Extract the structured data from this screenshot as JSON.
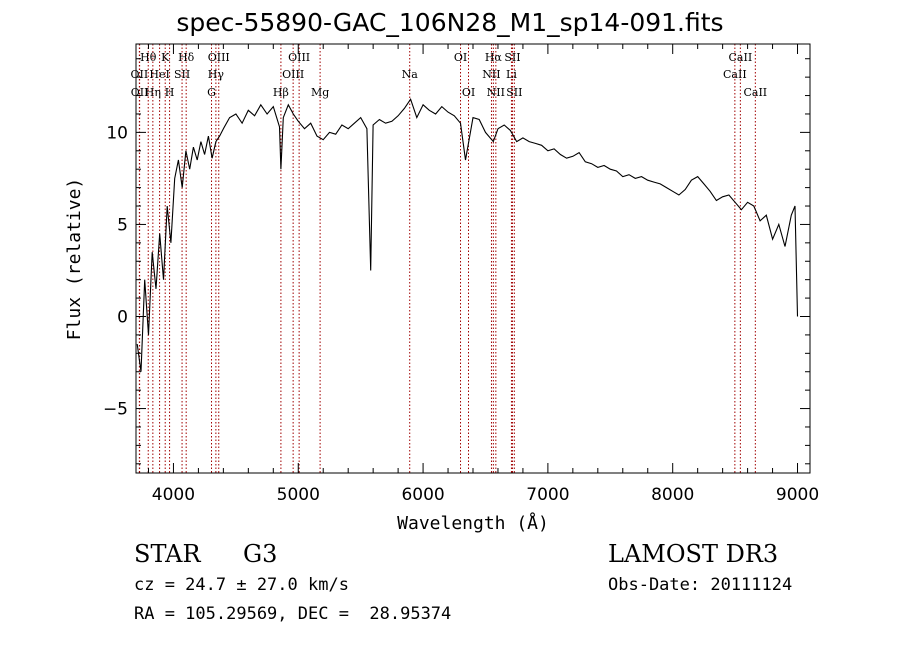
{
  "chart_data": {
    "type": "line",
    "title": "spec-55890-GAC_106N28_M1_sp14-091.fits",
    "xlabel": "Wavelength (Å)",
    "ylabel": "Flux (relative)",
    "xlim": [
      3700,
      9100
    ],
    "ylim": [
      -8.5,
      14.8
    ],
    "xticks": [
      4000,
      5000,
      6000,
      7000,
      8000,
      9000
    ],
    "yticks": [
      -5,
      0,
      5,
      10
    ],
    "xtick_labels": [
      "4000",
      "5000",
      "6000",
      "7000",
      "8000",
      "9000"
    ],
    "ytick_labels": [
      "−5",
      "0",
      "5",
      "10"
    ],
    "series": [
      {
        "name": "flux",
        "x": [
          3710,
          3740,
          3770,
          3800,
          3830,
          3860,
          3890,
          3920,
          3950,
          3980,
          4010,
          4040,
          4070,
          4100,
          4130,
          4160,
          4190,
          4220,
          4250,
          4280,
          4310,
          4340,
          4370,
          4400,
          4450,
          4500,
          4550,
          4600,
          4650,
          4700,
          4750,
          4800,
          4850,
          4861,
          4880,
          4920,
          4960,
          5000,
          5050,
          5100,
          5150,
          5200,
          5250,
          5300,
          5350,
          5400,
          5450,
          5500,
          5550,
          5580,
          5600,
          5650,
          5700,
          5750,
          5800,
          5850,
          5900,
          5950,
          6000,
          6050,
          6100,
          6150,
          6200,
          6250,
          6300,
          6340,
          6400,
          6450,
          6500,
          6563,
          6600,
          6650,
          6700,
          6750,
          6800,
          6850,
          6900,
          6950,
          7000,
          7050,
          7100,
          7150,
          7200,
          7250,
          7300,
          7350,
          7400,
          7450,
          7500,
          7550,
          7600,
          7650,
          7700,
          7750,
          7800,
          7850,
          7900,
          7950,
          8000,
          8050,
          8100,
          8150,
          8200,
          8250,
          8300,
          8350,
          8400,
          8450,
          8500,
          8550,
          8600,
          8650,
          8700,
          8750,
          8800,
          8850,
          8900,
          8950,
          8980,
          9000
        ],
        "y": [
          -1.5,
          -3.0,
          2.0,
          -1.0,
          3.5,
          1.5,
          4.5,
          2.0,
          6.0,
          4.0,
          7.5,
          8.5,
          7.0,
          9.0,
          8.0,
          9.2,
          8.5,
          9.5,
          8.8,
          9.8,
          8.6,
          9.5,
          9.8,
          10.2,
          10.8,
          11.0,
          10.5,
          11.2,
          10.9,
          11.5,
          11.0,
          11.4,
          10.3,
          8.0,
          10.8,
          11.5,
          11.0,
          10.6,
          10.2,
          10.5,
          9.8,
          9.6,
          10.0,
          9.9,
          10.4,
          10.2,
          10.5,
          10.8,
          10.2,
          2.5,
          10.4,
          10.7,
          10.5,
          10.6,
          10.9,
          11.3,
          11.8,
          10.8,
          11.5,
          11.2,
          11.0,
          11.4,
          11.1,
          10.9,
          10.5,
          8.5,
          10.8,
          10.7,
          10.0,
          9.5,
          10.2,
          10.4,
          10.1,
          9.5,
          9.7,
          9.5,
          9.4,
          9.3,
          9.0,
          9.1,
          8.8,
          8.6,
          8.7,
          8.9,
          8.4,
          8.3,
          8.1,
          8.2,
          8.0,
          7.9,
          7.6,
          7.7,
          7.5,
          7.6,
          7.4,
          7.3,
          7.2,
          7.0,
          6.8,
          6.6,
          6.9,
          7.4,
          7.6,
          7.2,
          6.8,
          6.3,
          6.5,
          6.6,
          6.2,
          5.8,
          6.2,
          6.0,
          5.2,
          5.5,
          4.2,
          5.0,
          3.8,
          5.5,
          6.0,
          0.0
        ]
      }
    ],
    "lines": [
      {
        "label": "Hθ",
        "wl": 3798,
        "row": 0
      },
      {
        "label": "OII",
        "wl": 3727,
        "row": 1
      },
      {
        "label": "OII",
        "wl": 3729,
        "row": 2
      },
      {
        "label": "K",
        "wl": 3934,
        "row": 0
      },
      {
        "label": "HeI",
        "wl": 3889,
        "row": 1
      },
      {
        "label": "Hη",
        "wl": 3835,
        "row": 2
      },
      {
        "label": "H",
        "wl": 3969,
        "row": 2
      },
      {
        "label": "Hδ",
        "wl": 4102,
        "row": 0
      },
      {
        "label": "SII",
        "wl": 4069,
        "row": 1
      },
      {
        "label": "OIII",
        "wl": 4363,
        "row": 0
      },
      {
        "label": "Hγ",
        "wl": 4340,
        "row": 1
      },
      {
        "label": "G",
        "wl": 4305,
        "row": 2
      },
      {
        "label": "Hβ",
        "wl": 4861,
        "row": 2
      },
      {
        "label": "OIII",
        "wl": 5007,
        "row": 0
      },
      {
        "label": "OIII",
        "wl": 4959,
        "row": 1
      },
      {
        "label": "Mg",
        "wl": 5175,
        "row": 2
      },
      {
        "label": "Na",
        "wl": 5893,
        "row": 1
      },
      {
        "label": "OI",
        "wl": 6300,
        "row": 0
      },
      {
        "label": "OI",
        "wl": 6364,
        "row": 2
      },
      {
        "label": "Hα",
        "wl": 6563,
        "row": 0
      },
      {
        "label": "SII",
        "wl": 6716,
        "row": 0
      },
      {
        "label": "NII",
        "wl": 6548,
        "row": 1
      },
      {
        "label": "Li",
        "wl": 6708,
        "row": 1
      },
      {
        "label": "NII",
        "wl": 6583,
        "row": 2
      },
      {
        "label": "SII",
        "wl": 6731,
        "row": 2
      },
      {
        "label": "CaII",
        "wl": 8542,
        "row": 0
      },
      {
        "label": "CaII",
        "wl": 8498,
        "row": 1
      },
      {
        "label": "CaII",
        "wl": 8662,
        "row": 2
      }
    ]
  },
  "info": {
    "class": "STAR",
    "subclass": "G3",
    "survey": "LAMOST DR3",
    "cz": "cz = 24.7 ± 27.0 km/s",
    "obsdate": "Obs-Date: 20111124",
    "radec": "RA = 105.29569, DEC =  28.95374"
  },
  "colors": {
    "line_marker": "#a00000",
    "spectrum": "#000000"
  }
}
